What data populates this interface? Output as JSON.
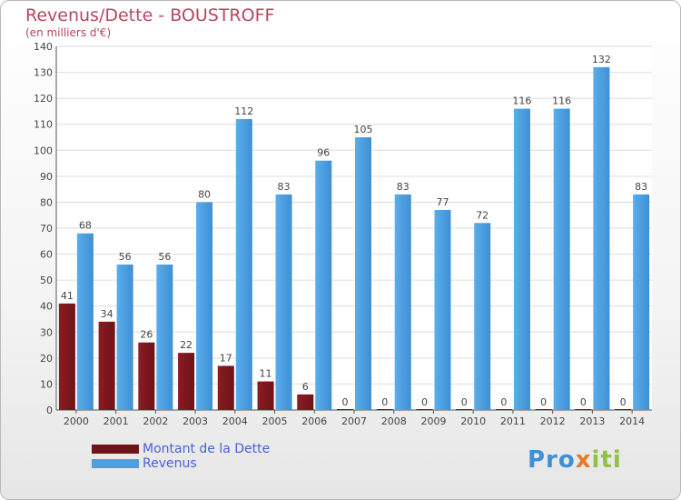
{
  "title": "Revenus/Dette - BOUSTROFF",
  "subtitle": "(en milliers d'€)",
  "logo": {
    "text": "Proxiti"
  },
  "colors": {
    "debt": "#6e1418",
    "revenue": "#4e9fe0",
    "text": "#b5485e",
    "legend_text": "#4a5fd6"
  },
  "legend": [
    {
      "label": "Montant de la Dette"
    },
    {
      "label": "Revenus"
    }
  ],
  "chart_data": {
    "type": "bar",
    "categories": [
      "2000",
      "2001",
      "2002",
      "2003",
      "2004",
      "2005",
      "2006",
      "2007",
      "2008",
      "2009",
      "2010",
      "2011",
      "2012",
      "2013",
      "2014"
    ],
    "series": [
      {
        "name": "Montant de la Dette",
        "values": [
          41,
          34,
          26,
          22,
          17,
          11,
          6,
          0,
          0,
          0,
          0,
          0,
          0,
          0,
          0
        ]
      },
      {
        "name": "Revenus",
        "values": [
          68,
          56,
          56,
          80,
          112,
          83,
          96,
          105,
          83,
          77,
          72,
          116,
          116,
          132,
          83
        ]
      }
    ],
    "title": "Revenus/Dette - BOUSTROFF",
    "subtitle": "(en milliers d'€)",
    "ylim": [
      0,
      140
    ],
    "yticks": [
      0,
      10,
      20,
      30,
      40,
      50,
      60,
      70,
      80,
      90,
      100,
      110,
      120,
      130,
      140
    ],
    "grid": true,
    "legend_position": "bottom-left"
  }
}
